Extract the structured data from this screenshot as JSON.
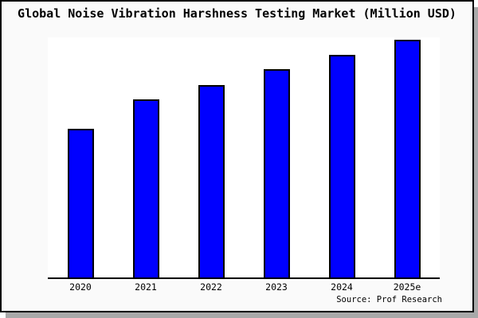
{
  "chart_data": {
    "type": "bar",
    "title": "Global Noise Vibration Harshness Testing Market (Million USD)",
    "categories": [
      "2020",
      "2021",
      "2022",
      "2023",
      "2024",
      "2025e"
    ],
    "values": [
      62.5,
      75,
      81,
      87.5,
      93.5,
      100
    ],
    "xlabel": "",
    "ylabel": "",
    "ylim": [
      0,
      101
    ],
    "y_axis_labels_shown": false,
    "grid": false,
    "legend": false,
    "bar_color": "#0000ff",
    "bar_border_color": "#000000"
  },
  "source": "Source: Prof Research",
  "colors": {
    "frame_background": "#fafafa",
    "plot_background": "#ffffff",
    "frame_border": "#000000",
    "axis": "#000000",
    "shadow": "#a9a9a9"
  }
}
